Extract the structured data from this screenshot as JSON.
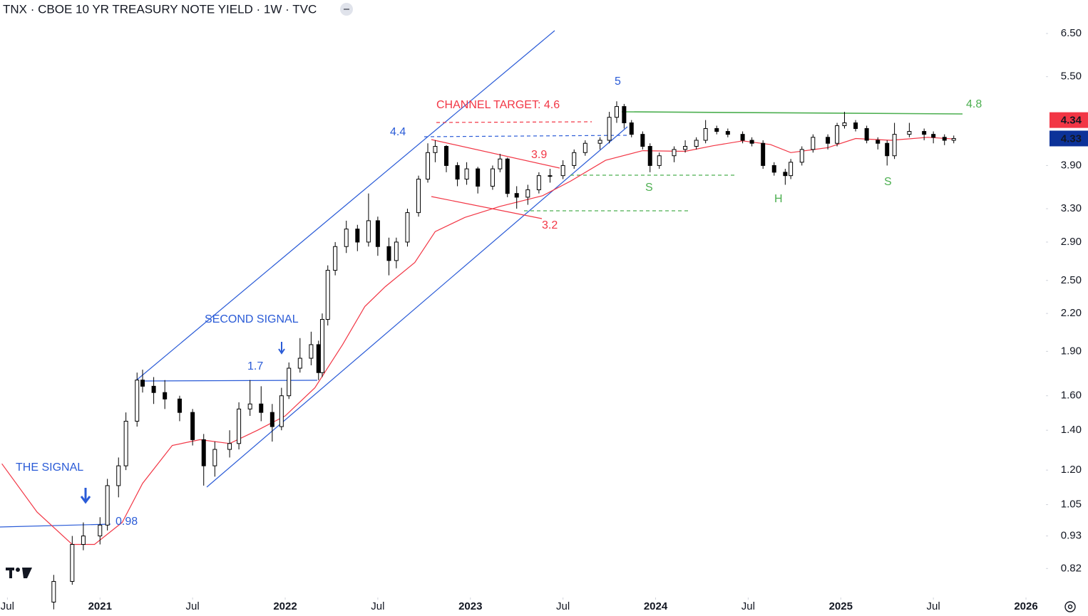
{
  "chart_data": {
    "type": "candlestick",
    "title": "TNX · CBOE 10 YR TREASURY NOTE YIELD · 1W · TVC",
    "log_scale": true,
    "grid": false,
    "xlim": [
      2020.46,
      2026.1
    ],
    "ylim": [
      0.735,
      7.4
    ],
    "xticks": [
      {
        "value": 2020.5,
        "label": "Jul"
      },
      2021,
      {
        "value": 2021.5,
        "label": "Jul"
      },
      2022,
      {
        "value": 2022.5,
        "label": "Jul"
      },
      2023,
      {
        "value": 2023.5,
        "label": "Jul"
      },
      2024,
      {
        "value": 2024.5,
        "label": "Jul"
      },
      2025,
      {
        "value": 2025.5,
        "label": "Jul"
      },
      2026
    ],
    "yticks": [
      {
        "value": 0.82,
        "label": "0.82"
      },
      {
        "value": 0.93,
        "label": "0.93"
      },
      {
        "value": 1.05,
        "label": "1.05"
      },
      {
        "value": 1.2,
        "label": "1.20"
      },
      {
        "value": 1.4,
        "label": "1.40"
      },
      {
        "value": 1.6,
        "label": "1.60"
      },
      {
        "value": 1.9,
        "label": "1.90"
      },
      {
        "value": 2.2,
        "label": "2.20"
      },
      {
        "value": 2.5,
        "label": "2.50"
      },
      {
        "value": 2.9,
        "label": "2.90"
      },
      {
        "value": 3.3,
        "label": "3.30"
      },
      {
        "value": 3.9,
        "label": "3.90"
      },
      {
        "value": 5.5,
        "label": "5.50"
      },
      {
        "value": 6.5,
        "label": "6.50"
      }
    ],
    "up_color": "#ffffff",
    "down_color": "#000000",
    "wick_color": "#000000",
    "x": [
      2020.75,
      2020.85,
      2020.91,
      2021.0,
      2021.04,
      2021.1,
      2021.14,
      2021.2,
      2021.23,
      2021.29,
      2021.35,
      2021.43,
      2021.5,
      2021.56,
      2021.62,
      2021.7,
      2021.75,
      2021.81,
      2021.87,
      2021.93,
      2021.98,
      2022.02,
      2022.08,
      2022.14,
      2022.18,
      2022.2,
      2022.23,
      2022.27,
      2022.33,
      2022.39,
      2022.45,
      2022.5,
      2022.56,
      2022.6,
      2022.66,
      2022.72,
      2022.77,
      2022.81,
      2022.87,
      2022.93,
      2022.98,
      2023.04,
      2023.12,
      2023.16,
      2023.2,
      2023.25,
      2023.31,
      2023.37,
      2023.43,
      2023.5,
      2023.56,
      2023.62,
      2023.7,
      2023.75,
      2023.79,
      2023.83,
      2023.87,
      2023.93,
      2023.97,
      2024.02,
      2024.1,
      2024.16,
      2024.22,
      2024.27,
      2024.33,
      2024.39,
      2024.47,
      2024.52,
      2024.58,
      2024.64,
      2024.7,
      2024.73,
      2024.79,
      2024.85,
      2024.93,
      2024.98,
      2025.02,
      2025.08,
      2025.14,
      2025.2,
      2025.25,
      2025.29,
      2025.37,
      2025.45,
      2025.5,
      2025.56,
      2025.61
    ],
    "open": [
      0.72,
      0.78,
      0.9,
      0.93,
      0.97,
      1.13,
      1.22,
      1.45,
      1.7,
      1.66,
      1.62,
      1.58,
      1.5,
      1.35,
      1.22,
      1.3,
      1.33,
      1.52,
      1.55,
      1.5,
      1.42,
      1.6,
      1.78,
      1.85,
      1.95,
      1.75,
      2.15,
      2.6,
      2.85,
      3.05,
      2.9,
      3.15,
      2.85,
      2.7,
      2.9,
      3.25,
      3.7,
      4.1,
      4.2,
      3.9,
      3.7,
      3.85,
      3.6,
      3.85,
      4.0,
      3.5,
      3.45,
      3.55,
      3.75,
      3.75,
      3.9,
      4.1,
      4.25,
      4.3,
      4.7,
      4.9,
      4.6,
      4.4,
      4.2,
      3.9,
      4.05,
      4.15,
      4.2,
      4.3,
      4.5,
      4.45,
      4.4,
      4.3,
      4.25,
      3.9,
      3.8,
      3.75,
      3.95,
      4.15,
      4.35,
      4.25,
      4.55,
      4.6,
      4.5,
      4.3,
      4.25,
      4.05,
      4.4,
      4.45,
      4.4,
      4.35,
      4.3
    ],
    "high": [
      0.8,
      0.93,
      0.98,
      1.0,
      1.16,
      1.26,
      1.5,
      1.75,
      1.77,
      1.72,
      1.7,
      1.6,
      1.52,
      1.38,
      1.34,
      1.4,
      1.56,
      1.7,
      1.66,
      1.55,
      1.65,
      1.82,
      2.0,
      2.05,
      1.98,
      2.2,
      2.65,
      2.9,
      3.15,
      3.1,
      3.5,
      3.2,
      2.95,
      2.95,
      3.3,
      3.75,
      4.25,
      4.3,
      4.22,
      3.95,
      3.95,
      3.88,
      3.9,
      4.08,
      4.02,
      3.6,
      3.62,
      3.8,
      3.85,
      3.98,
      4.15,
      4.3,
      4.35,
      4.8,
      5.0,
      4.95,
      4.65,
      4.45,
      4.25,
      4.1,
      4.2,
      4.3,
      4.35,
      4.65,
      4.55,
      4.5,
      4.45,
      4.35,
      4.3,
      3.95,
      3.85,
      4.0,
      4.2,
      4.4,
      4.4,
      4.6,
      4.8,
      4.65,
      4.55,
      4.35,
      4.3,
      4.6,
      4.6,
      4.5,
      4.45,
      4.4,
      4.38
    ],
    "low": [
      0.7,
      0.77,
      0.88,
      0.9,
      0.95,
      1.08,
      1.2,
      1.42,
      1.62,
      1.55,
      1.52,
      1.45,
      1.32,
      1.13,
      1.17,
      1.26,
      1.3,
      1.48,
      1.45,
      1.34,
      1.4,
      1.58,
      1.75,
      1.8,
      1.7,
      1.72,
      2.1,
      2.55,
      2.78,
      2.8,
      2.85,
      2.75,
      2.55,
      2.62,
      2.85,
      3.2,
      3.65,
      3.95,
      3.8,
      3.6,
      3.62,
      3.5,
      3.55,
      3.8,
      3.45,
      3.3,
      3.35,
      3.5,
      3.65,
      3.7,
      3.85,
      4.05,
      4.15,
      4.25,
      4.6,
      4.5,
      4.35,
      4.15,
      3.8,
      3.85,
      3.95,
      4.1,
      4.15,
      4.25,
      4.4,
      4.35,
      4.25,
      4.2,
      3.85,
      3.75,
      3.62,
      3.7,
      3.9,
      4.1,
      4.15,
      4.2,
      4.5,
      4.45,
      4.25,
      4.15,
      3.9,
      4.0,
      4.35,
      4.3,
      4.25,
      4.22,
      4.25
    ],
    "close": [
      0.78,
      0.9,
      0.93,
      0.97,
      1.13,
      1.22,
      1.45,
      1.7,
      1.66,
      1.62,
      1.58,
      1.5,
      1.35,
      1.22,
      1.3,
      1.33,
      1.52,
      1.55,
      1.5,
      1.42,
      1.6,
      1.78,
      1.85,
      1.95,
      1.75,
      2.15,
      2.6,
      2.85,
      3.05,
      2.9,
      3.15,
      2.85,
      2.7,
      2.9,
      3.25,
      3.7,
      4.1,
      4.2,
      3.9,
      3.7,
      3.85,
      3.6,
      3.85,
      4.0,
      3.5,
      3.45,
      3.55,
      3.75,
      3.75,
      3.9,
      4.1,
      4.25,
      4.3,
      4.7,
      4.9,
      4.6,
      4.4,
      4.2,
      3.9,
      4.05,
      4.15,
      4.2,
      4.3,
      4.5,
      4.45,
      4.4,
      4.3,
      4.25,
      3.9,
      3.8,
      3.75,
      3.95,
      4.15,
      4.35,
      4.25,
      4.55,
      4.6,
      4.5,
      4.3,
      4.25,
      4.05,
      4.4,
      4.45,
      4.4,
      4.35,
      4.3,
      4.33
    ],
    "moving_average": {
      "color": "#f23645",
      "x": [
        2020.47,
        2020.66,
        2020.85,
        2020.97,
        2021.12,
        2021.23,
        2021.39,
        2021.54,
        2021.7,
        2021.85,
        2022.0,
        2022.16,
        2022.31,
        2022.43,
        2022.54,
        2022.7,
        2022.81,
        2022.97,
        2023.16,
        2023.39,
        2023.54,
        2023.73,
        2023.93,
        2024.16,
        2024.31,
        2024.47,
        2024.62,
        2024.73,
        2024.93,
        2025.08,
        2025.27,
        2025.47,
        2025.62
      ],
      "values": [
        1.23,
        1.02,
        0.9,
        0.9,
        0.98,
        1.14,
        1.32,
        1.35,
        1.33,
        1.4,
        1.48,
        1.65,
        1.95,
        2.26,
        2.44,
        2.68,
        3.02,
        3.19,
        3.33,
        3.47,
        3.67,
        3.98,
        4.13,
        4.12,
        4.21,
        4.29,
        4.23,
        4.1,
        4.18,
        4.33,
        4.3,
        4.35,
        4.32
      ]
    },
    "price_badges": [
      {
        "value": 4.34,
        "color": "#f23645"
      },
      {
        "value": 4.33,
        "color": "#0c3299"
      }
    ],
    "annotations": [
      {
        "text": "THE SIGNAL",
        "color": "#2a5bd7"
      },
      {
        "text": "0.98",
        "color": "#2a5bd7"
      },
      {
        "text": "SECOND SIGNAL",
        "color": "#2a5bd7"
      },
      {
        "text": "1.7",
        "color": "#2a5bd7"
      },
      {
        "text": "4.4",
        "color": "#2a5bd7"
      },
      {
        "text": "CHANNEL TARGET: 4.6",
        "color": "#f23645"
      },
      {
        "text": "3.9",
        "color": "#f23645"
      },
      {
        "text": "3.2",
        "color": "#f23645"
      },
      {
        "text": "5",
        "color": "#2a5bd7"
      },
      {
        "text": "S",
        "color": "#4caf50"
      },
      {
        "text": "H",
        "color": "#4caf50"
      },
      {
        "text": "S",
        "color": "#4caf50"
      },
      {
        "text": "4.8",
        "color": "#4caf50"
      }
    ]
  }
}
